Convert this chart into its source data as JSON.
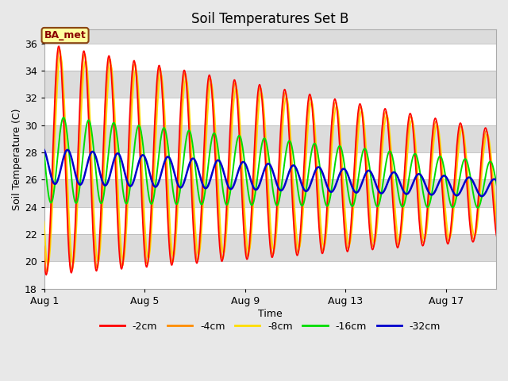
{
  "title": "Soil Temperatures Set B",
  "xlabel": "Time",
  "ylabel": "Soil Temperature (C)",
  "annotation": "BA_met",
  "ylim": [
    18,
    37
  ],
  "yticks": [
    18,
    20,
    22,
    24,
    26,
    28,
    30,
    32,
    34,
    36
  ],
  "xtick_labels": [
    "Aug 1",
    "Aug 5",
    "Aug 9",
    "Aug 13",
    "Aug 17"
  ],
  "xtick_positions": [
    0,
    4,
    8,
    12,
    16
  ],
  "n_days": 19,
  "colors": {
    "-2cm": "#FF0000",
    "-4cm": "#FF8C00",
    "-8cm": "#FFDD00",
    "-16cm": "#00DD00",
    "-32cm": "#0000CC"
  },
  "background_color": "#E8E8E8",
  "band_white": "#FFFFFF",
  "band_gray": "#DCDCDC",
  "legend_labels": [
    "-2cm",
    "-4cm",
    "-8cm",
    "-16cm",
    "-32cm"
  ],
  "title_fontsize": 12
}
